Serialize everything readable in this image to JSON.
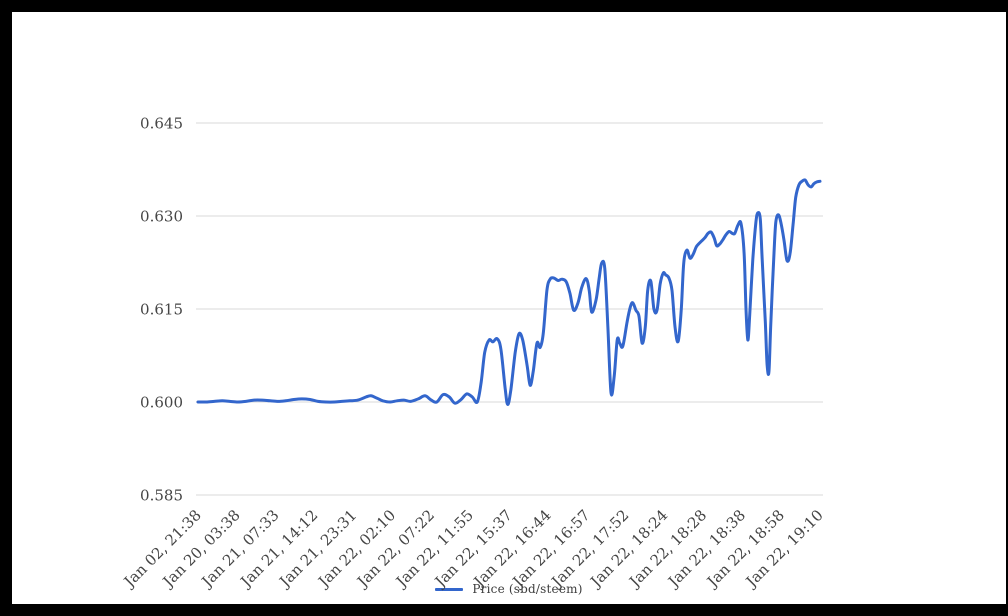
{
  "window": {
    "frame_color": "#000000",
    "canvas_background": "#ffffff"
  },
  "chart_data": {
    "type": "line",
    "title": "",
    "xlabel": "",
    "ylabel": "",
    "grid": true,
    "legend": {
      "label": "Price (sbd/steem)",
      "position": "bottom"
    },
    "line_color": "#3366cc",
    "grid_color": "#d9d9d9",
    "axis_text_color": "#454545",
    "y_axis": {
      "tick_labels": [
        "0.585",
        "0.600",
        "0.615",
        "0.630",
        "0.645"
      ],
      "tick_values": [
        0.585,
        0.6,
        0.615,
        0.63,
        0.645
      ],
      "min": 0.585,
      "max": 0.645
    },
    "x_axis": {
      "slant_degrees": -45,
      "tick_labels": [
        "Jan 02, 21:38",
        "Jan 20, 03:38",
        "Jan 21, 07:33",
        "Jan 21, 14:12",
        "Jan 21, 23:31",
        "Jan 22, 02:10",
        "Jan 22, 07:22",
        "Jan 22, 11:55",
        "Jan 22, 15:37",
        "Jan 22, 16:44",
        "Jan 22, 16:57",
        "Jan 22, 17:52",
        "Jan 22, 18:24",
        "Jan 22, 18:28",
        "Jan 22, 18:38",
        "Jan 22, 18:58",
        "Jan 22, 19:10"
      ]
    },
    "series": [
      {
        "name": "Price (sbd/steem)",
        "points": [
          [
            0,
            0.6
          ],
          [
            1.3,
            0.6
          ],
          [
            2.6,
            0.6001
          ],
          [
            3.9,
            0.6002
          ],
          [
            5.1,
            0.6001
          ],
          [
            6.4,
            0.6
          ],
          [
            7.7,
            0.6001
          ],
          [
            9,
            0.6003
          ],
          [
            10.3,
            0.6003
          ],
          [
            11.6,
            0.6002
          ],
          [
            12.9,
            0.6001
          ],
          [
            14.1,
            0.6002
          ],
          [
            15.4,
            0.6004
          ],
          [
            16.7,
            0.6005
          ],
          [
            18,
            0.6004
          ],
          [
            19.3,
            0.6001
          ],
          [
            20.6,
            0.6
          ],
          [
            21.9,
            0.6
          ],
          [
            23.1,
            0.6001
          ],
          [
            24.4,
            0.6002
          ],
          [
            25.7,
            0.6003
          ],
          [
            27,
            0.6008
          ],
          [
            27.8,
            0.601
          ],
          [
            28.8,
            0.6006
          ],
          [
            29.7,
            0.6002
          ],
          [
            30.9,
            0.6
          ],
          [
            32,
            0.6002
          ],
          [
            33.1,
            0.6003
          ],
          [
            34.2,
            0.6001
          ],
          [
            35.4,
            0.6005
          ],
          [
            36.5,
            0.601
          ],
          [
            37.5,
            0.6003
          ],
          [
            38.4,
            0.6
          ],
          [
            39.4,
            0.6012
          ],
          [
            40.4,
            0.6008
          ],
          [
            41.3,
            0.5998
          ],
          [
            42.3,
            0.6004
          ],
          [
            43.2,
            0.6013
          ],
          [
            44.1,
            0.6008
          ],
          [
            44.9,
            0.6
          ],
          [
            45.5,
            0.603
          ],
          [
            46.1,
            0.608
          ],
          [
            46.8,
            0.61
          ],
          [
            47.4,
            0.6097
          ],
          [
            48.1,
            0.6102
          ],
          [
            48.7,
            0.6085
          ],
          [
            49.4,
            0.602
          ],
          [
            49.8,
            0.5996
          ],
          [
            50.3,
            0.602
          ],
          [
            51,
            0.608
          ],
          [
            51.6,
            0.611
          ],
          [
            52.2,
            0.61
          ],
          [
            52.9,
            0.606
          ],
          [
            53.4,
            0.6027
          ],
          [
            53.9,
            0.605
          ],
          [
            54.5,
            0.6095
          ],
          [
            55,
            0.6088
          ],
          [
            55.5,
            0.611
          ],
          [
            56.1,
            0.618
          ],
          [
            56.6,
            0.6198
          ],
          [
            57.2,
            0.62
          ],
          [
            57.9,
            0.6196
          ],
          [
            58.5,
            0.6198
          ],
          [
            59.2,
            0.6194
          ],
          [
            59.8,
            0.6175
          ],
          [
            60.4,
            0.6148
          ],
          [
            61.1,
            0.616
          ],
          [
            61.7,
            0.6185
          ],
          [
            62.4,
            0.6199
          ],
          [
            62.9,
            0.618
          ],
          [
            63.3,
            0.6145
          ],
          [
            64,
            0.6165
          ],
          [
            64.5,
            0.62
          ],
          [
            64.9,
            0.6224
          ],
          [
            65.4,
            0.6215
          ],
          [
            65.9,
            0.612
          ],
          [
            66.4,
            0.6015
          ],
          [
            66.9,
            0.604
          ],
          [
            67.4,
            0.61
          ],
          [
            67.8,
            0.6095
          ],
          [
            68.3,
            0.609
          ],
          [
            69,
            0.613
          ],
          [
            69.5,
            0.6153
          ],
          [
            69.9,
            0.616
          ],
          [
            70.4,
            0.6148
          ],
          [
            70.9,
            0.6138
          ],
          [
            71.4,
            0.6095
          ],
          [
            71.9,
            0.612
          ],
          [
            72.3,
            0.618
          ],
          [
            72.8,
            0.6195
          ],
          [
            73.3,
            0.615
          ],
          [
            73.8,
            0.6148
          ],
          [
            74.3,
            0.619
          ],
          [
            74.8,
            0.6208
          ],
          [
            75.2,
            0.6205
          ],
          [
            75.7,
            0.62
          ],
          [
            76.2,
            0.618
          ],
          [
            76.7,
            0.612
          ],
          [
            77.2,
            0.6098
          ],
          [
            77.7,
            0.615
          ],
          [
            78.1,
            0.6225
          ],
          [
            78.6,
            0.6245
          ],
          [
            79.1,
            0.6232
          ],
          [
            79.6,
            0.6238
          ],
          [
            80.1,
            0.625
          ],
          [
            80.5,
            0.6255
          ],
          [
            81,
            0.626
          ],
          [
            81.5,
            0.6265
          ],
          [
            82,
            0.6272
          ],
          [
            82.5,
            0.6274
          ],
          [
            83,
            0.6264
          ],
          [
            83.4,
            0.6252
          ],
          [
            83.9,
            0.6255
          ],
          [
            84.4,
            0.6262
          ],
          [
            84.9,
            0.627
          ],
          [
            85.4,
            0.6275
          ],
          [
            85.9,
            0.6272
          ],
          [
            86.3,
            0.6272
          ],
          [
            86.8,
            0.6285
          ],
          [
            87.3,
            0.6288
          ],
          [
            87.8,
            0.624
          ],
          [
            88.1,
            0.615
          ],
          [
            88.4,
            0.61
          ],
          [
            88.7,
            0.614
          ],
          [
            89.2,
            0.623
          ],
          [
            89.7,
            0.629
          ],
          [
            90,
            0.6305
          ],
          [
            90.4,
            0.6295
          ],
          [
            90.7,
            0.623
          ],
          [
            91.2,
            0.613
          ],
          [
            91.5,
            0.606
          ],
          [
            91.8,
            0.605
          ],
          [
            92.1,
            0.613
          ],
          [
            92.6,
            0.624
          ],
          [
            92.9,
            0.629
          ],
          [
            93.3,
            0.6302
          ],
          [
            93.7,
            0.629
          ],
          [
            94.2,
            0.6262
          ],
          [
            94.7,
            0.6228
          ],
          [
            95.2,
            0.624
          ],
          [
            95.7,
            0.629
          ],
          [
            96.1,
            0.633
          ],
          [
            96.6,
            0.635
          ],
          [
            97.1,
            0.6356
          ],
          [
            97.6,
            0.6358
          ],
          [
            98.1,
            0.635
          ],
          [
            98.6,
            0.6347
          ],
          [
            99,
            0.6352
          ],
          [
            99.5,
            0.6355
          ],
          [
            100,
            0.6356
          ]
        ]
      }
    ]
  }
}
